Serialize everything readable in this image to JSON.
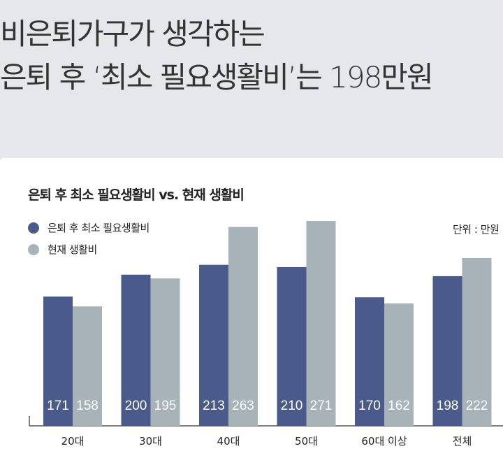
{
  "headline": {
    "line1": "비은퇴가구가 생각하는",
    "line2": "은퇴 후 ‘최소 필요생활비’는 198만원"
  },
  "chart_data": {
    "type": "bar",
    "title": "은퇴 후 최소 필요생활비 vs. 현재 생활비",
    "unit_label": "단위 : 만원",
    "categories": [
      "20대",
      "30대",
      "40대",
      "50대",
      "60대 이상",
      "전체"
    ],
    "series": [
      {
        "name": "은퇴 후 최소 필요생활비",
        "color": "#4a5a8a",
        "values": [
          171,
          200,
          213,
          210,
          170,
          198
        ]
      },
      {
        "name": "현재 생활비",
        "color": "#a7b2b9",
        "values": [
          158,
          195,
          263,
          271,
          162,
          222
        ]
      }
    ],
    "ylim": [
      0,
      271
    ],
    "xlabel": "",
    "ylabel": "",
    "grid": false,
    "legend": "top-left"
  }
}
